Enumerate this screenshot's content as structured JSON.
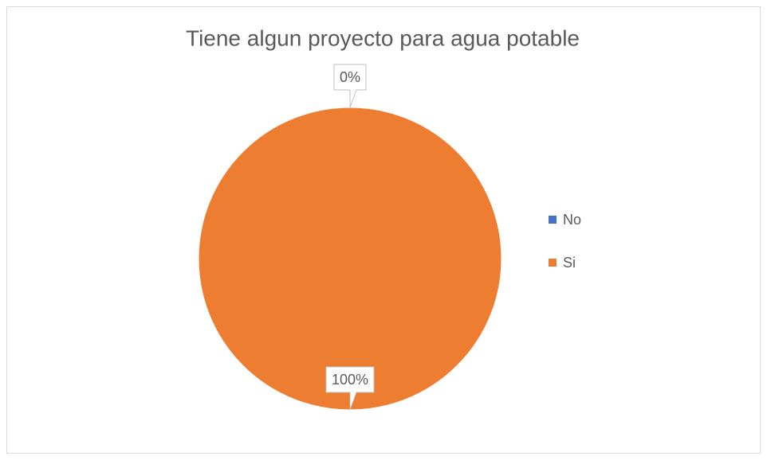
{
  "chart_data": {
    "type": "pie",
    "title": "Tiene algun proyecto para agua potable",
    "categories": [
      "No",
      "Si"
    ],
    "values": [
      0,
      100
    ],
    "value_labels": [
      "0%",
      "100%"
    ],
    "colors": [
      "#4472c4",
      "#ed7d31"
    ],
    "legend": "right"
  }
}
